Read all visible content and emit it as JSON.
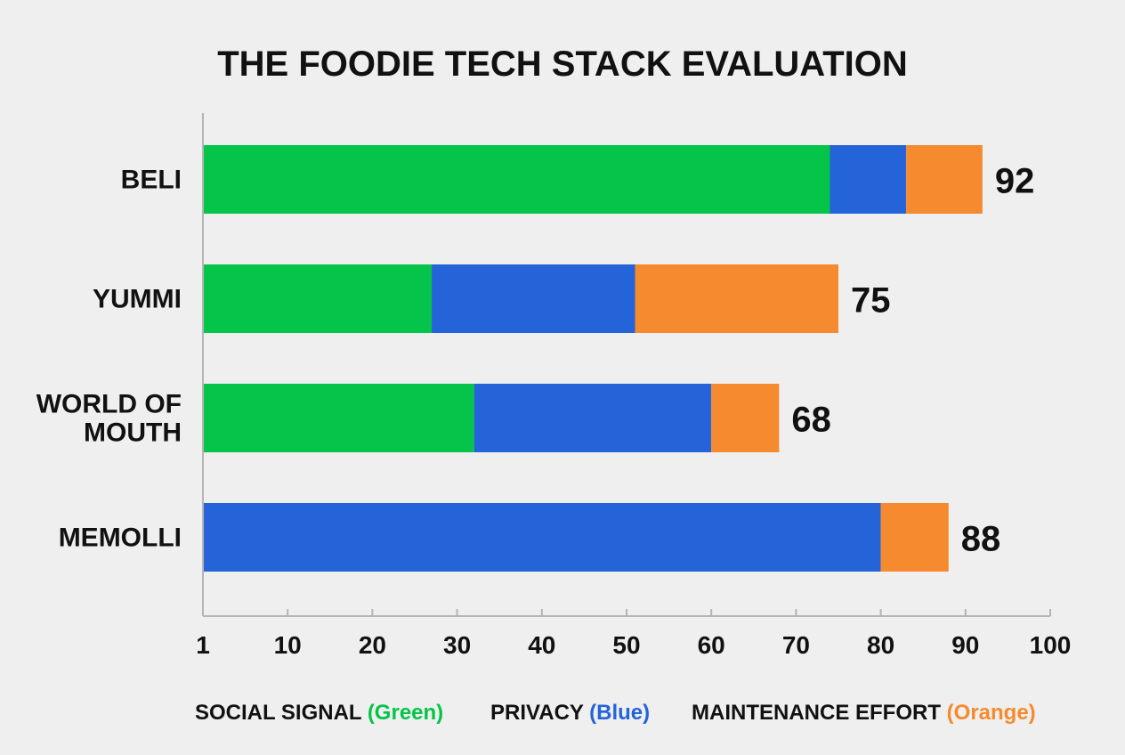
{
  "chart_data": {
    "type": "bar",
    "orientation": "horizontal",
    "stacked": true,
    "title": "THE FOODIE TECH STACK EVALUATION",
    "categories": [
      [
        "BELI"
      ],
      [
        "YUMMI"
      ],
      [
        "WORLD OF",
        "MOUTH"
      ],
      [
        "MEMOLLI"
      ]
    ],
    "series": [
      {
        "name": "SOCIAL SIGNAL",
        "color_word": "(Green)",
        "color": "#05c44a",
        "values": [
          74,
          27,
          32,
          0
        ]
      },
      {
        "name": "PRIVACY",
        "color_word": "(Blue)",
        "color": "#2563d8",
        "values": [
          9,
          24,
          28,
          80
        ]
      },
      {
        "name": "MAINTENANCE EFFORT",
        "color_word": "(Orange)",
        "color": "#f68a2e",
        "values": [
          9,
          24,
          8,
          8
        ]
      }
    ],
    "totals": [
      "92",
      "75",
      "68",
      "88"
    ],
    "x_ticks": [
      "1",
      "10",
      "20",
      "30",
      "40",
      "50",
      "60",
      "70",
      "80",
      "90",
      "100"
    ],
    "xlim": [
      0,
      100
    ],
    "grid": false,
    "legend_position": "bottom"
  }
}
